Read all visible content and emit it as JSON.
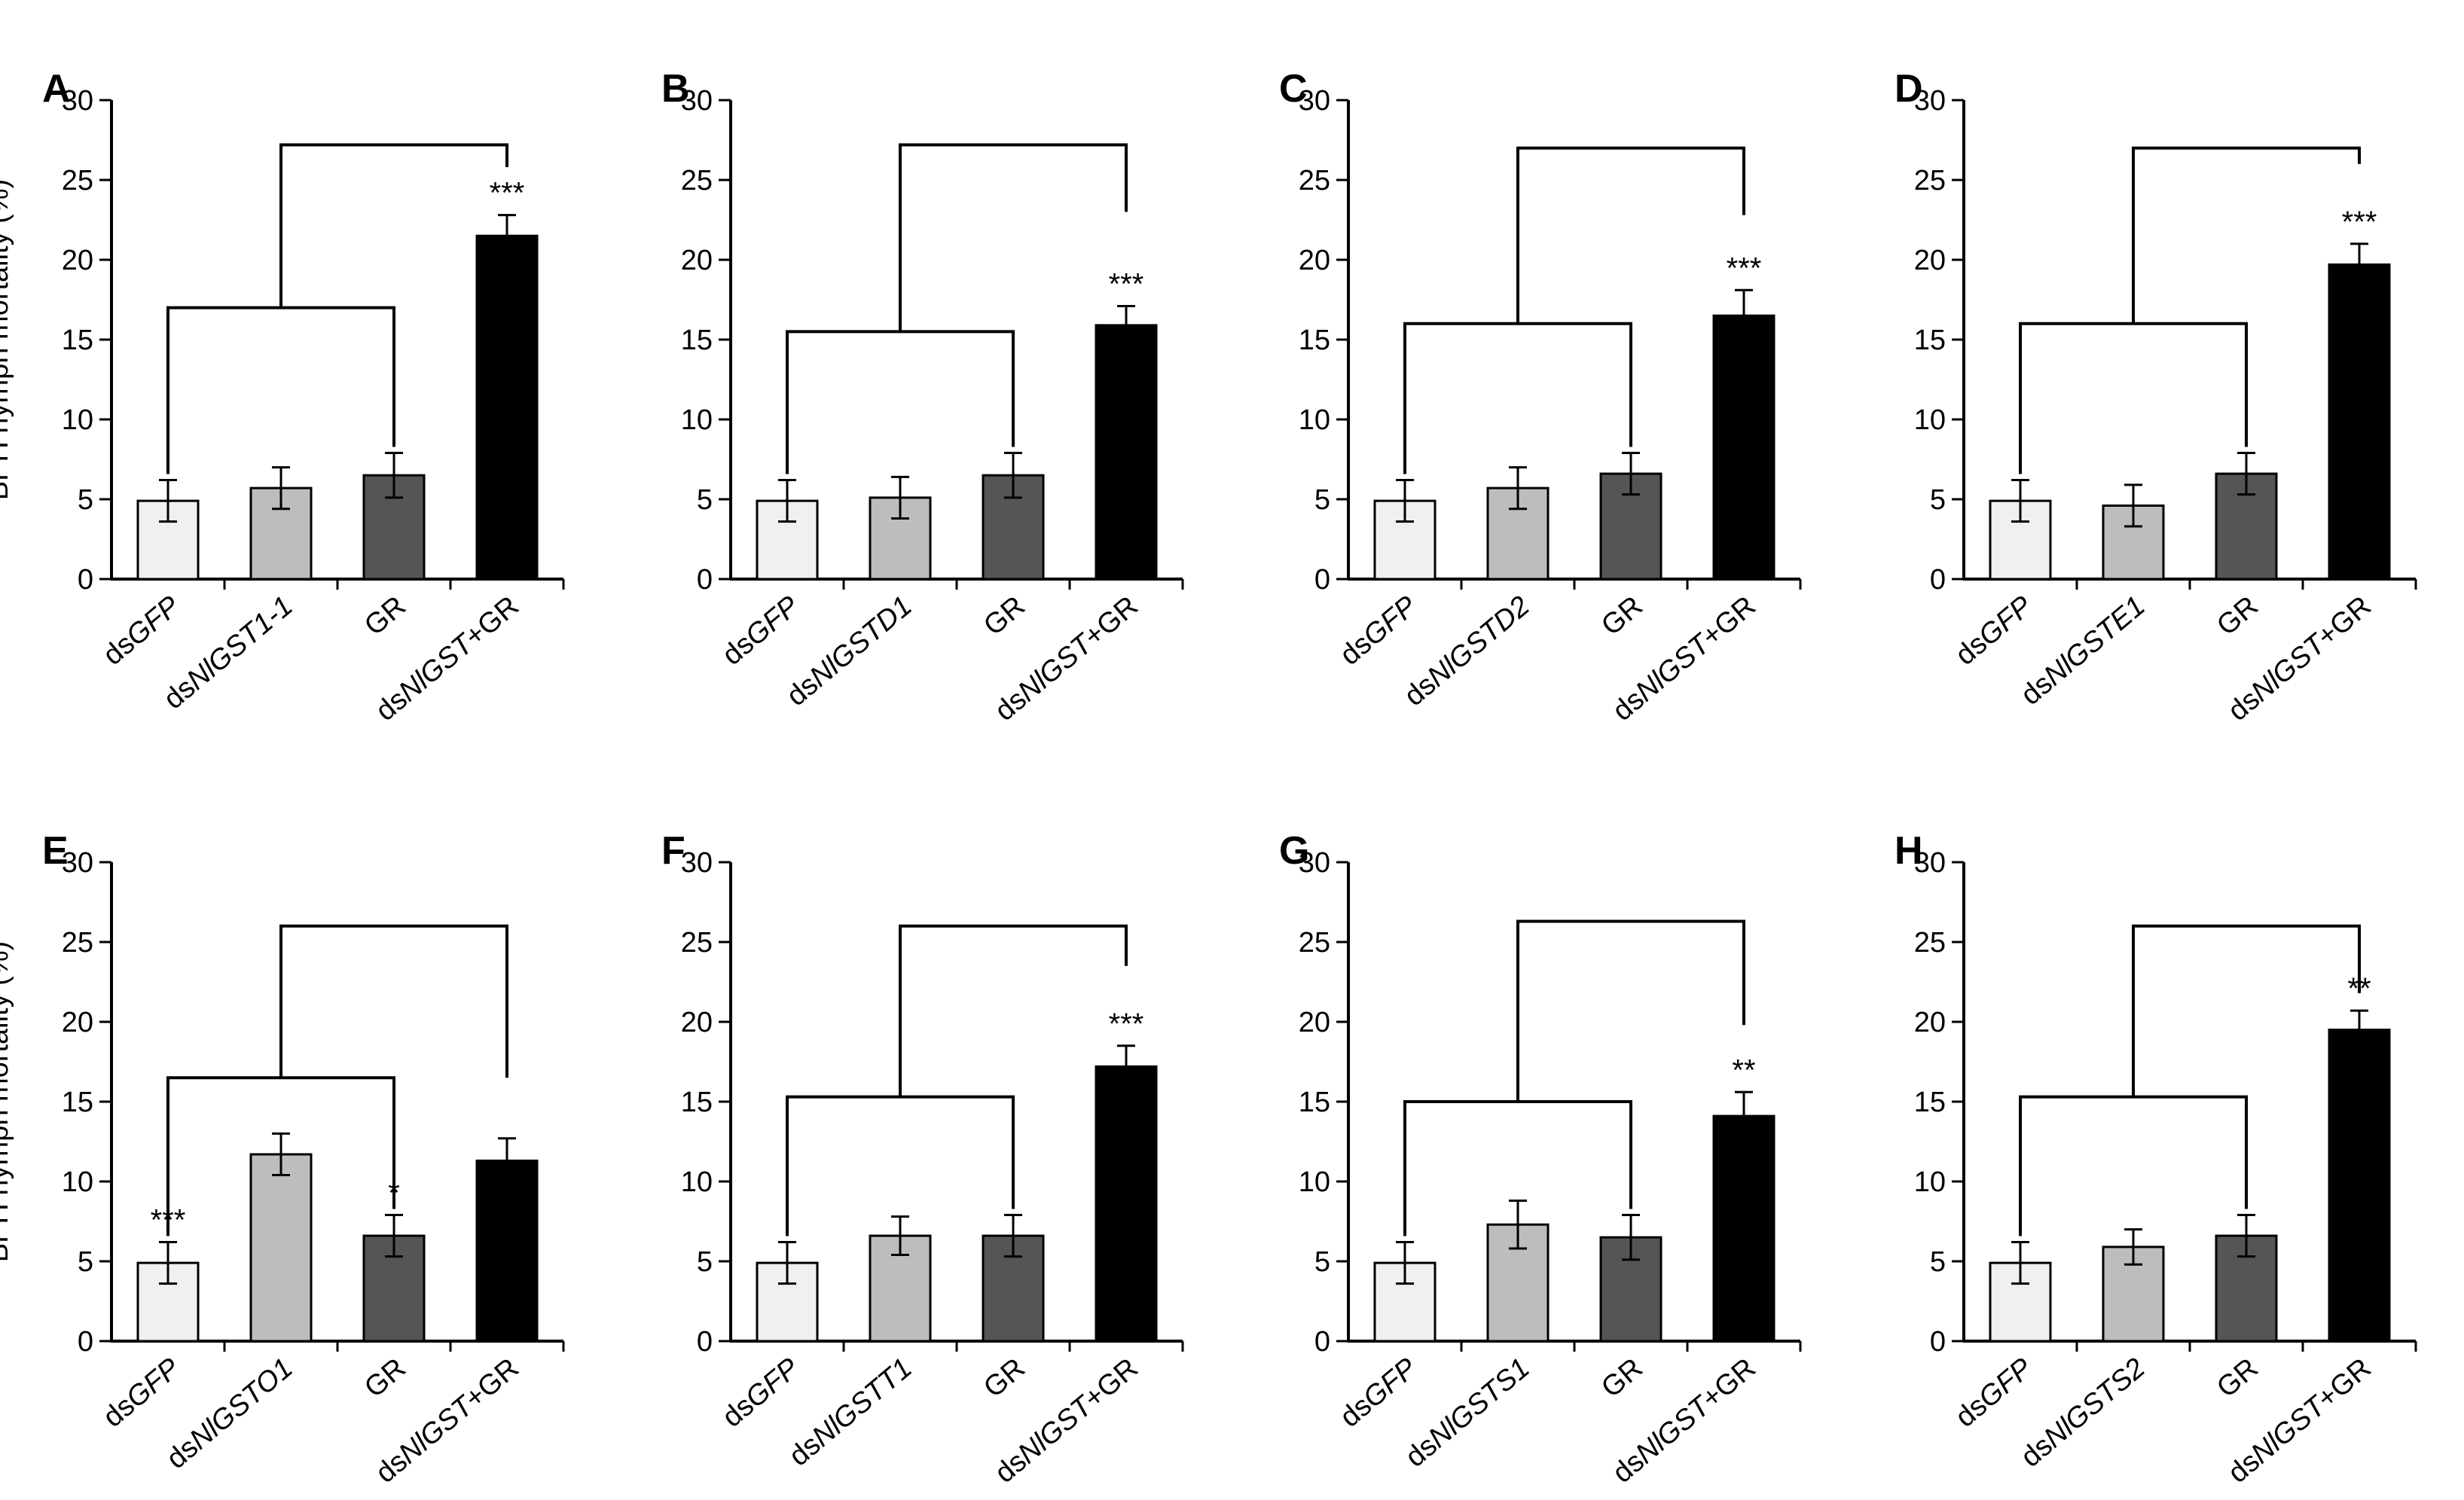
{
  "figure": {
    "ylabel": "BPH nymph mortality (%)",
    "ylim": [
      0,
      30
    ],
    "yticks": [
      0,
      5,
      10,
      15,
      20,
      25,
      30
    ],
    "bar_colors": [
      "#f0f0f0",
      "#bdbdbd",
      "#555555",
      "#000000"
    ]
  },
  "chart_data": [
    {
      "panel": "A",
      "type": "bar",
      "ylabel": "BPH nymph mortality (%)",
      "ylim": [
        0,
        30
      ],
      "categories": [
        {
          "prefix": "ds",
          "italic": "GFP",
          "suffix": ""
        },
        {
          "prefix": "ds",
          "italic": "NlGST1-1",
          "suffix": ""
        },
        {
          "prefix": "GR",
          "italic": "",
          "suffix": ""
        },
        {
          "prefix": "ds",
          "italic": "NlGST",
          "suffix": "+GR"
        }
      ],
      "values": [
        4.9,
        5.7,
        6.5,
        21.5
      ],
      "errors": [
        1.3,
        1.3,
        1.4,
        1.3
      ],
      "annotations": [
        "",
        "",
        "",
        "***"
      ],
      "comparison": {
        "target": 3,
        "group": [
          0,
          2
        ],
        "group_y": 17.0,
        "top_y": 27.2,
        "target_y": 25.8
      }
    },
    {
      "panel": "B",
      "type": "bar",
      "ylabel": "",
      "ylim": [
        0,
        30
      ],
      "categories": [
        {
          "prefix": "ds",
          "italic": "GFP",
          "suffix": ""
        },
        {
          "prefix": "ds",
          "italic": "NlGSTD1",
          "suffix": ""
        },
        {
          "prefix": "GR",
          "italic": "",
          "suffix": ""
        },
        {
          "prefix": "ds",
          "italic": "NlGST",
          "suffix": "+GR"
        }
      ],
      "values": [
        4.9,
        5.1,
        6.5,
        15.9
      ],
      "errors": [
        1.3,
        1.3,
        1.4,
        1.2
      ],
      "annotations": [
        "",
        "",
        "",
        "***"
      ],
      "comparison": {
        "target": 3,
        "group": [
          0,
          2
        ],
        "group_y": 15.5,
        "top_y": 27.2,
        "target_y": 23.0
      }
    },
    {
      "panel": "C",
      "type": "bar",
      "ylabel": "",
      "ylim": [
        0,
        30
      ],
      "categories": [
        {
          "prefix": "ds",
          "italic": "GFP",
          "suffix": ""
        },
        {
          "prefix": "ds",
          "italic": "NlGSTD2",
          "suffix": ""
        },
        {
          "prefix": "GR",
          "italic": "",
          "suffix": ""
        },
        {
          "prefix": "ds",
          "italic": "NlGST",
          "suffix": "+GR"
        }
      ],
      "values": [
        4.9,
        5.7,
        6.6,
        16.5
      ],
      "errors": [
        1.3,
        1.3,
        1.3,
        1.6
      ],
      "annotations": [
        "",
        "",
        "",
        "***"
      ],
      "comparison": {
        "target": 3,
        "group": [
          0,
          2
        ],
        "group_y": 16.0,
        "top_y": 27.0,
        "target_y": 22.8
      }
    },
    {
      "panel": "D",
      "type": "bar",
      "ylabel": "",
      "ylim": [
        0,
        30
      ],
      "categories": [
        {
          "prefix": "ds",
          "italic": "GFP",
          "suffix": ""
        },
        {
          "prefix": "ds",
          "italic": "NlGSTE1",
          "suffix": ""
        },
        {
          "prefix": "GR",
          "italic": "",
          "suffix": ""
        },
        {
          "prefix": "ds",
          "italic": "NlGST",
          "suffix": "+GR"
        }
      ],
      "values": [
        4.9,
        4.6,
        6.6,
        19.7
      ],
      "errors": [
        1.3,
        1.3,
        1.3,
        1.3
      ],
      "annotations": [
        "",
        "",
        "",
        "***"
      ],
      "comparison": {
        "target": 3,
        "group": [
          0,
          2
        ],
        "group_y": 16.0,
        "top_y": 27.0,
        "target_y": 26.0
      }
    },
    {
      "panel": "E",
      "type": "bar",
      "ylabel": "BPH nymph mortality (%)",
      "ylim": [
        0,
        30
      ],
      "categories": [
        {
          "prefix": "ds",
          "italic": "GFP",
          "suffix": ""
        },
        {
          "prefix": "ds",
          "italic": "NlGSTO1",
          "suffix": ""
        },
        {
          "prefix": "GR",
          "italic": "",
          "suffix": ""
        },
        {
          "prefix": "ds",
          "italic": "NlGST",
          "suffix": "+GR"
        }
      ],
      "values": [
        4.9,
        11.7,
        6.6,
        11.3
      ],
      "errors": [
        1.3,
        1.3,
        1.3,
        1.4
      ],
      "annotations": [
        "***",
        "",
        "*",
        ""
      ],
      "comparison": {
        "target": 3,
        "group": [
          0,
          2
        ],
        "group_y": 16.5,
        "top_y": 26.0,
        "target_y": 16.5
      }
    },
    {
      "panel": "F",
      "type": "bar",
      "ylabel": "",
      "ylim": [
        0,
        30
      ],
      "categories": [
        {
          "prefix": "ds",
          "italic": "GFP",
          "suffix": ""
        },
        {
          "prefix": "ds",
          "italic": "NlGSTT1",
          "suffix": ""
        },
        {
          "prefix": "GR",
          "italic": "",
          "suffix": ""
        },
        {
          "prefix": "ds",
          "italic": "NlGST",
          "suffix": "+GR"
        }
      ],
      "values": [
        4.9,
        6.6,
        6.6,
        17.2
      ],
      "errors": [
        1.3,
        1.2,
        1.3,
        1.3
      ],
      "annotations": [
        "",
        "",
        "",
        "***"
      ],
      "comparison": {
        "target": 3,
        "group": [
          0,
          2
        ],
        "group_y": 15.3,
        "top_y": 26.0,
        "target_y": 23.5
      }
    },
    {
      "panel": "G",
      "type": "bar",
      "ylabel": "",
      "ylim": [
        0,
        30
      ],
      "categories": [
        {
          "prefix": "ds",
          "italic": "GFP",
          "suffix": ""
        },
        {
          "prefix": "ds",
          "italic": "NlGSTS1",
          "suffix": ""
        },
        {
          "prefix": "GR",
          "italic": "",
          "suffix": ""
        },
        {
          "prefix": "ds",
          "italic": "NlGST",
          "suffix": "+GR"
        }
      ],
      "values": [
        4.9,
        7.3,
        6.5,
        14.1
      ],
      "errors": [
        1.3,
        1.5,
        1.4,
        1.5
      ],
      "annotations": [
        "",
        "",
        "",
        "**"
      ],
      "comparison": {
        "target": 3,
        "group": [
          0,
          2
        ],
        "group_y": 15.0,
        "top_y": 26.3,
        "target_y": 19.8
      }
    },
    {
      "panel": "H",
      "type": "bar",
      "ylabel": "",
      "ylim": [
        0,
        30
      ],
      "categories": [
        {
          "prefix": "ds",
          "italic": "GFP",
          "suffix": ""
        },
        {
          "prefix": "ds",
          "italic": "NlGSTS2",
          "suffix": ""
        },
        {
          "prefix": "GR",
          "italic": "",
          "suffix": ""
        },
        {
          "prefix": "ds",
          "italic": "NlGST",
          "suffix": "+GR"
        }
      ],
      "values": [
        4.9,
        5.9,
        6.6,
        19.5
      ],
      "errors": [
        1.3,
        1.1,
        1.3,
        1.2
      ],
      "annotations": [
        "",
        "",
        "",
        "**"
      ],
      "comparison": {
        "target": 3,
        "group": [
          0,
          2
        ],
        "group_y": 15.3,
        "top_y": 26.0,
        "target_y": 21.8
      }
    }
  ]
}
